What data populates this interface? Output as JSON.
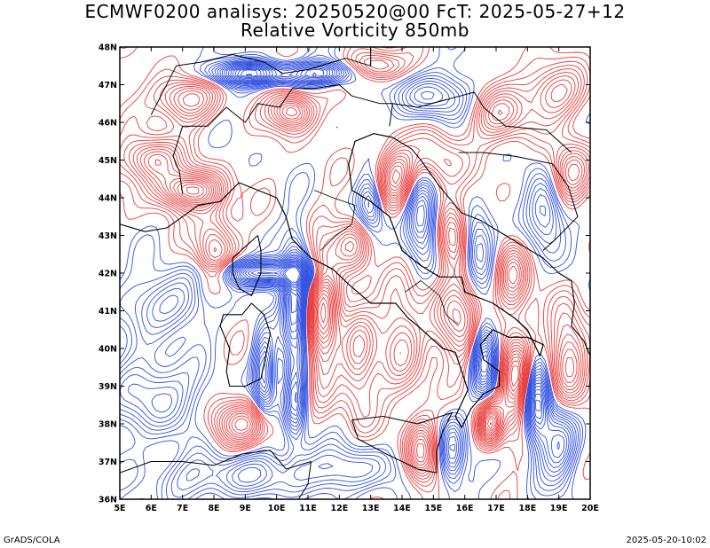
{
  "header": {
    "title_line_1": "ECMWF0200 analisys: 20250520@00 FcT: 2025-05-27+12",
    "title_line_2": "Relative Vorticity 850mb"
  },
  "map": {
    "lon_range": [
      5,
      20
    ],
    "lat_range": [
      36,
      48
    ],
    "lon_labels": [
      "5E",
      "6E",
      "7E",
      "8E",
      "9E",
      "10E",
      "11E",
      "12E",
      "13E",
      "14E",
      "15E",
      "16E",
      "17E",
      "18E",
      "19E",
      "20E"
    ],
    "lat_labels": [
      "36N",
      "37N",
      "38N",
      "39N",
      "40N",
      "41N",
      "42N",
      "43N",
      "44N",
      "45N",
      "46N",
      "47N",
      "48N"
    ],
    "colors": {
      "positive_contour": "#e83a3a",
      "negative_contour": "#2f4fe0",
      "coastline": "#000000",
      "frame": "#000000",
      "background": "#ffffff"
    }
  },
  "footer": {
    "left": "GrADS/COLA",
    "right": "2025-05-20-10:02"
  }
}
